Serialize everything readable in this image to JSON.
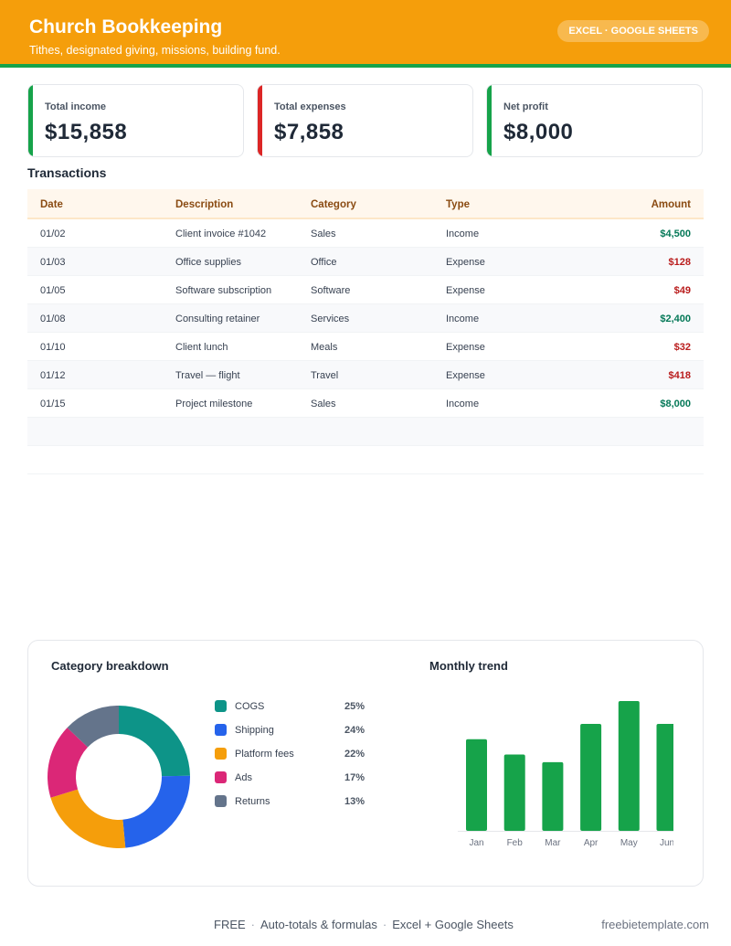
{
  "header": {
    "title": "Church Bookkeeping",
    "subtitle": "Tithes, designated giving, missions, building fund.",
    "badge": "EXCEL · GOOGLE SHEETS"
  },
  "colors": {
    "header": "#f59e0b",
    "stripe": "#16a34a",
    "income": "#16a34a",
    "expense": "#dc2626"
  },
  "summary": [
    {
      "label": "Total income",
      "value": "$15,858",
      "accent": "#16a34a"
    },
    {
      "label": "Total expenses",
      "value": "$7,858",
      "accent": "#dc2626"
    },
    {
      "label": "Net profit",
      "value": "$8,000",
      "accent": "#16a34a"
    }
  ],
  "transactions": {
    "title": "Transactions",
    "columns": [
      "Date",
      "Description",
      "Category",
      "Type",
      "Amount"
    ],
    "rows": [
      {
        "date": "01/02",
        "description": "Client invoice #1042",
        "category": "Sales",
        "type": "Income",
        "amount": "$4,500"
      },
      {
        "date": "01/03",
        "description": "Office supplies",
        "category": "Office",
        "type": "Expense",
        "amount": "$128"
      },
      {
        "date": "01/05",
        "description": "Software subscription",
        "category": "Software",
        "type": "Expense",
        "amount": "$49"
      },
      {
        "date": "01/08",
        "description": "Consulting retainer",
        "category": "Services",
        "type": "Income",
        "amount": "$2,400"
      },
      {
        "date": "01/10",
        "description": "Client lunch",
        "category": "Meals",
        "type": "Expense",
        "amount": "$32"
      },
      {
        "date": "01/12",
        "description": "Travel — flight",
        "category": "Travel",
        "type": "Expense",
        "amount": "$418"
      },
      {
        "date": "01/15",
        "description": "Project milestone",
        "category": "Sales",
        "type": "Income",
        "amount": "$8,000"
      }
    ]
  },
  "chart_data": [
    {
      "type": "pie",
      "title": "Category breakdown",
      "categories": [
        "COGS",
        "Shipping",
        "Platform fees",
        "Ads",
        "Returns"
      ],
      "values": [
        25,
        24,
        22,
        17,
        13
      ],
      "labels": [
        "25%",
        "24%",
        "22%",
        "17%",
        "13%"
      ],
      "colors": [
        "#0d9488",
        "#2563eb",
        "#f59e0b",
        "#db2777",
        "#64748b"
      ],
      "legend": "right"
    },
    {
      "type": "bar",
      "title": "Monthly trend",
      "categories": [
        "Jan",
        "Feb",
        "Mar",
        "Apr",
        "May",
        "Jun"
      ],
      "values": [
        60,
        50,
        45,
        70,
        85,
        70
      ],
      "ylim": [
        0,
        85
      ],
      "color": "#16a34a",
      "grid": false
    }
  ],
  "footer": {
    "items": [
      "FREE",
      "Auto-totals & formulas",
      "Excel + Google Sheets"
    ],
    "site": "freebietemplate.com"
  }
}
